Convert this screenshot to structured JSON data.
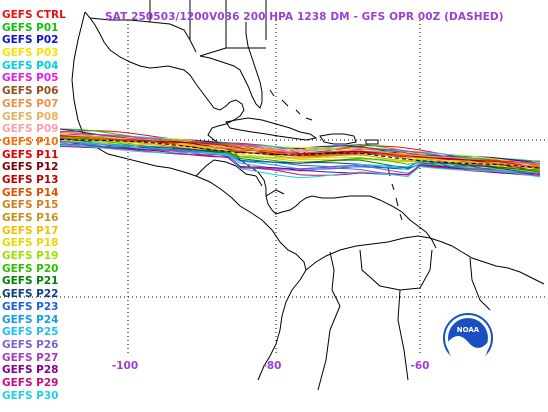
{
  "title": "SAT 250503/1200V036  200 HPA 1238 DM - GFS OPR 00Z (DASHED)",
  "legend": [
    {
      "label": "GEFS CTRL",
      "color": "#e81010"
    },
    {
      "label": "GEFS P01",
      "color": "#10c010"
    },
    {
      "label": "GEFS P02",
      "color": "#1010c8"
    },
    {
      "label": "GEFS P03",
      "color": "#ffe000"
    },
    {
      "label": "GEFS P04",
      "color": "#00d0e0"
    },
    {
      "label": "GEFS P05",
      "color": "#e020e0"
    },
    {
      "label": "GEFS P06",
      "color": "#905020"
    },
    {
      "label": "GEFS P07",
      "color": "#f09040"
    },
    {
      "label": "GEFS P08",
      "color": "#e8b060"
    },
    {
      "label": "GEFS P09",
      "color": "#f8a0b0"
    },
    {
      "label": "GEFS P10",
      "color": "#ff7000"
    },
    {
      "label": "GEFS P11",
      "color": "#e00000"
    },
    {
      "label": "GEFS P12",
      "color": "#800000"
    },
    {
      "label": "GEFS P13",
      "color": "#c00000"
    },
    {
      "label": "GEFS P14",
      "color": "#e05000"
    },
    {
      "label": "GEFS P15",
      "color": "#d08020"
    },
    {
      "label": "GEFS P16",
      "color": "#c89020"
    },
    {
      "label": "GEFS P17",
      "color": "#f0c000"
    },
    {
      "label": "GEFS P18",
      "color": "#e8d800"
    },
    {
      "label": "GEFS P19",
      "color": "#a0e000"
    },
    {
      "label": "GEFS P20",
      "color": "#30c000"
    },
    {
      "label": "GEFS P21",
      "color": "#008000"
    },
    {
      "label": "GEFS P22",
      "color": "#104080"
    },
    {
      "label": "GEFS P23",
      "color": "#2060e0"
    },
    {
      "label": "GEFS P24",
      "color": "#10a0e0"
    },
    {
      "label": "GEFS P25",
      "color": "#20c0f0"
    },
    {
      "label": "GEFS P26",
      "color": "#8060d0"
    },
    {
      "label": "GEFS P27",
      "color": "#a040c0"
    },
    {
      "label": "GEFS P28",
      "color": "#800090"
    },
    {
      "label": "GEFS P29",
      "color": "#c01080"
    },
    {
      "label": "GEFS P30",
      "color": "#20d0e0"
    }
  ],
  "longitude_labels": [
    "-100",
    "-80",
    "-60"
  ],
  "logo": {
    "text": "NOAA",
    "color": "#1a4fc0"
  }
}
